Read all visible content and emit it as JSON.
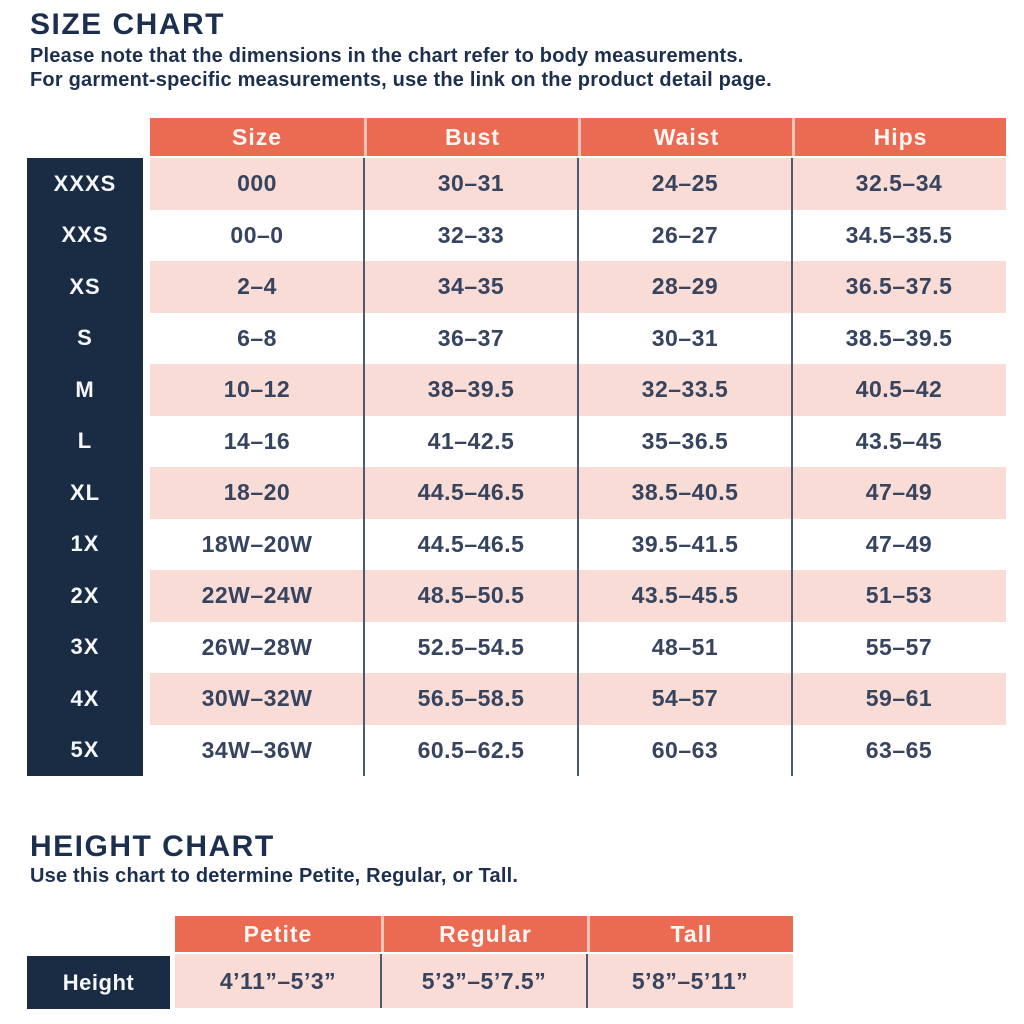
{
  "colors": {
    "coral_header": "#eb6a52",
    "pink_row": "#f9dcd6",
    "navy_block": "#1a2c44",
    "text_navy": "#37445f",
    "separator_line": "#4d5a6e"
  },
  "size_chart": {
    "title": "SIZE CHART",
    "subtitle_line1": "Please note that the dimensions in the chart refer to body measurements.",
    "subtitle_line2": "For garment-specific measurements, use the link on the product detail page.",
    "columns": [
      "Size",
      "Bust",
      "Waist",
      "Hips"
    ],
    "rows": [
      {
        "label": "XXXS",
        "size": "000",
        "bust": "30–31",
        "waist": "24–25",
        "hips": "32.5–34"
      },
      {
        "label": "XXS",
        "size": "00–0",
        "bust": "32–33",
        "waist": "26–27",
        "hips": "34.5–35.5"
      },
      {
        "label": "XS",
        "size": "2–4",
        "bust": "34–35",
        "waist": "28–29",
        "hips": "36.5–37.5"
      },
      {
        "label": "S",
        "size": "6–8",
        "bust": "36–37",
        "waist": "30–31",
        "hips": "38.5–39.5"
      },
      {
        "label": "M",
        "size": "10–12",
        "bust": "38–39.5",
        "waist": "32–33.5",
        "hips": "40.5–42"
      },
      {
        "label": "L",
        "size": "14–16",
        "bust": "41–42.5",
        "waist": "35–36.5",
        "hips": "43.5–45"
      },
      {
        "label": "XL",
        "size": "18–20",
        "bust": "44.5–46.5",
        "waist": "38.5–40.5",
        "hips": "47–49"
      },
      {
        "label": "1X",
        "size": "18W–20W",
        "bust": "44.5–46.5",
        "waist": "39.5–41.5",
        "hips": "47–49"
      },
      {
        "label": "2X",
        "size": "22W–24W",
        "bust": "48.5–50.5",
        "waist": "43.5–45.5",
        "hips": "51–53"
      },
      {
        "label": "3X",
        "size": "26W–28W",
        "bust": "52.5–54.5",
        "waist": "48–51",
        "hips": "55–57"
      },
      {
        "label": "4X",
        "size": "30W–32W",
        "bust": "56.5–58.5",
        "waist": "54–57",
        "hips": "59–61"
      },
      {
        "label": "5X",
        "size": "34W–36W",
        "bust": "60.5–62.5",
        "waist": "60–63",
        "hips": "63–65"
      }
    ]
  },
  "height_chart": {
    "title": "HEIGHT CHART",
    "subtitle": "Use this chart to determine Petite, Regular, or Tall.",
    "columns": [
      "Petite",
      "Regular",
      "Tall"
    ],
    "row_label": "Height",
    "values": [
      "4’11”–5’3”",
      "5’3”–5’7.5”",
      "5’8”–5’11”"
    ]
  }
}
